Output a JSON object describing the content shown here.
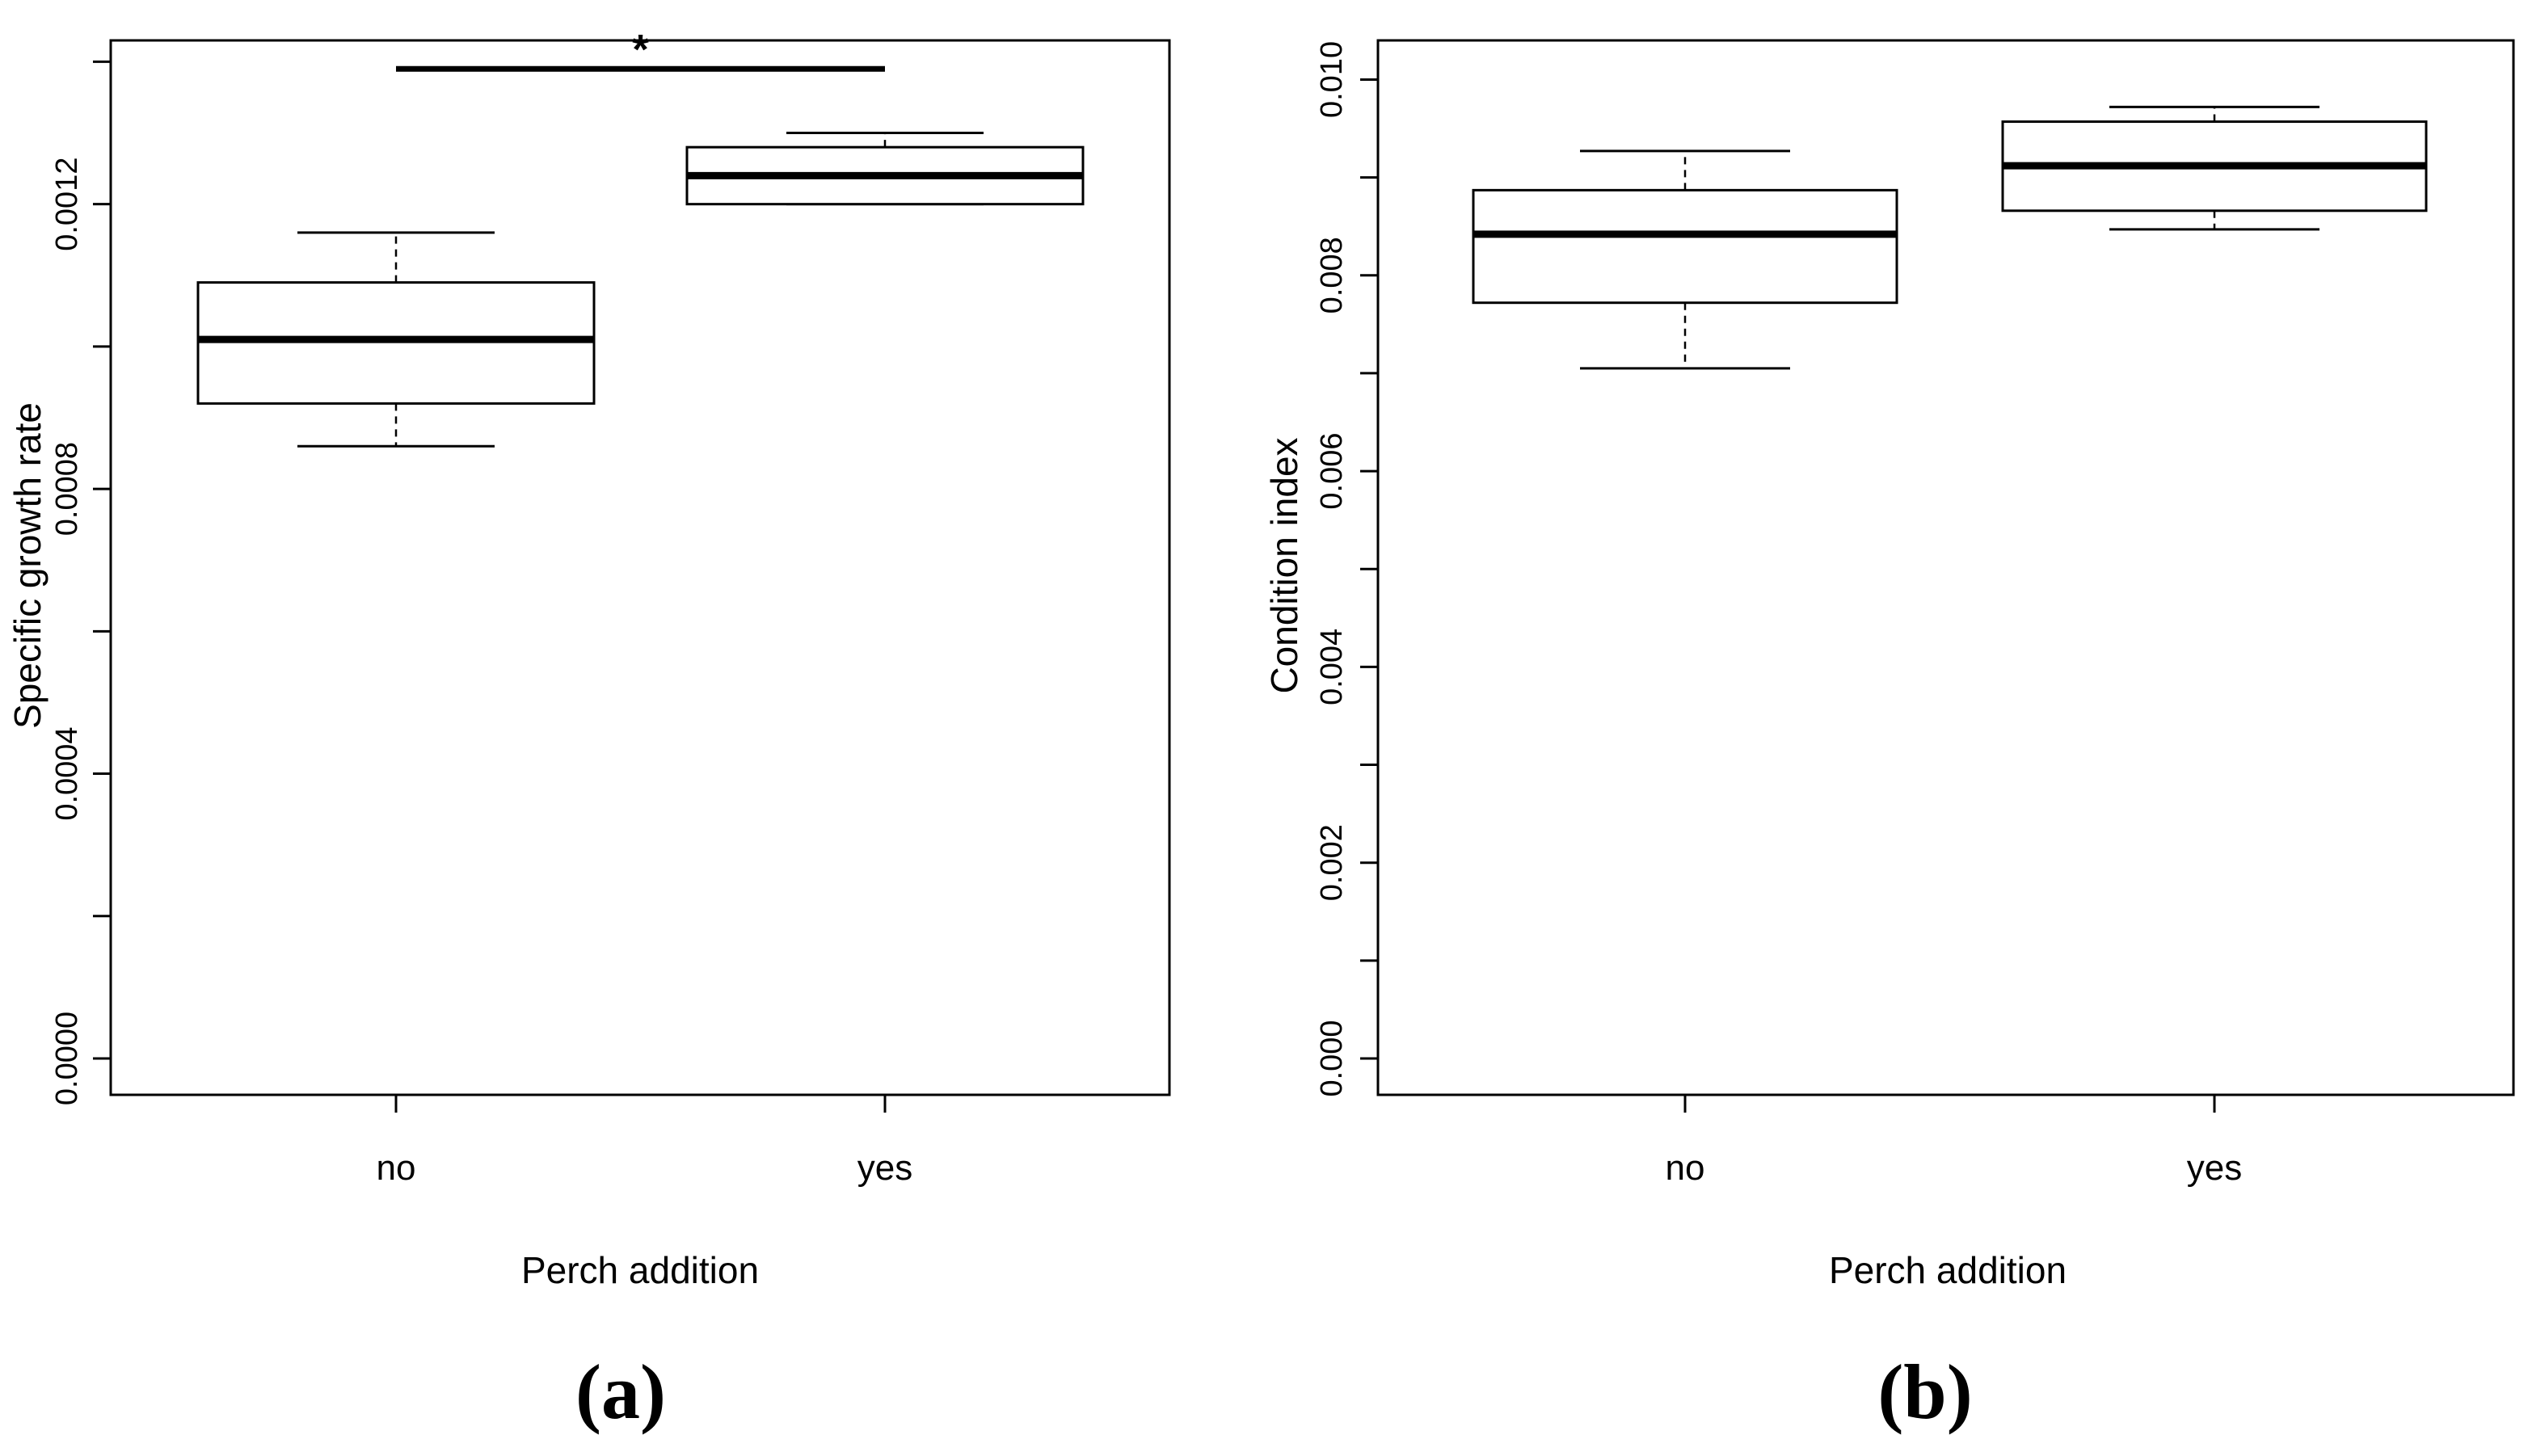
{
  "chart_data": [
    {
      "type": "box",
      "panel_label": "(a)",
      "xlabel": "Perch addition",
      "ylabel": "Specific growth rate",
      "categories": [
        "no",
        "yes"
      ],
      "ylim": [
        0,
        0.00143
      ],
      "yticks": [
        0.0,
        0.0004,
        0.0008,
        0.0012
      ],
      "ytick_labels": [
        "0.0000",
        "0.0004",
        "0.0008",
        "0.0012"
      ],
      "boxes": [
        {
          "category": "no",
          "whisker_low": 0.00086,
          "q1": 0.00092,
          "median": 0.00101,
          "q3": 0.00109,
          "whisker_high": 0.00116
        },
        {
          "category": "yes",
          "whisker_low": 0.0012,
          "q1": 0.0012,
          "median": 0.00124,
          "q3": 0.00128,
          "whisker_high": 0.0013
        }
      ],
      "annotation": {
        "text": "*",
        "y": 0.00139
      }
    },
    {
      "type": "box",
      "panel_label": "(b)",
      "xlabel": "Perch addition",
      "ylabel": "Condition index",
      "categories": [
        "no",
        "yes"
      ],
      "ylim": [
        0,
        0.0104
      ],
      "yticks": [
        0.0,
        0.002,
        0.004,
        0.006,
        0.008,
        0.01
      ],
      "ytick_labels": [
        "0.000",
        "0.002",
        "0.004",
        "0.006",
        "0.008",
        "0.010"
      ],
      "boxes": [
        {
          "category": "no",
          "whisker_low": 0.00705,
          "q1": 0.00772,
          "median": 0.00842,
          "q3": 0.00887,
          "whisker_high": 0.00927
        },
        {
          "category": "yes",
          "whisker_low": 0.00847,
          "q1": 0.00866,
          "median": 0.00912,
          "q3": 0.00957,
          "whisker_high": 0.00972
        }
      ]
    }
  ]
}
